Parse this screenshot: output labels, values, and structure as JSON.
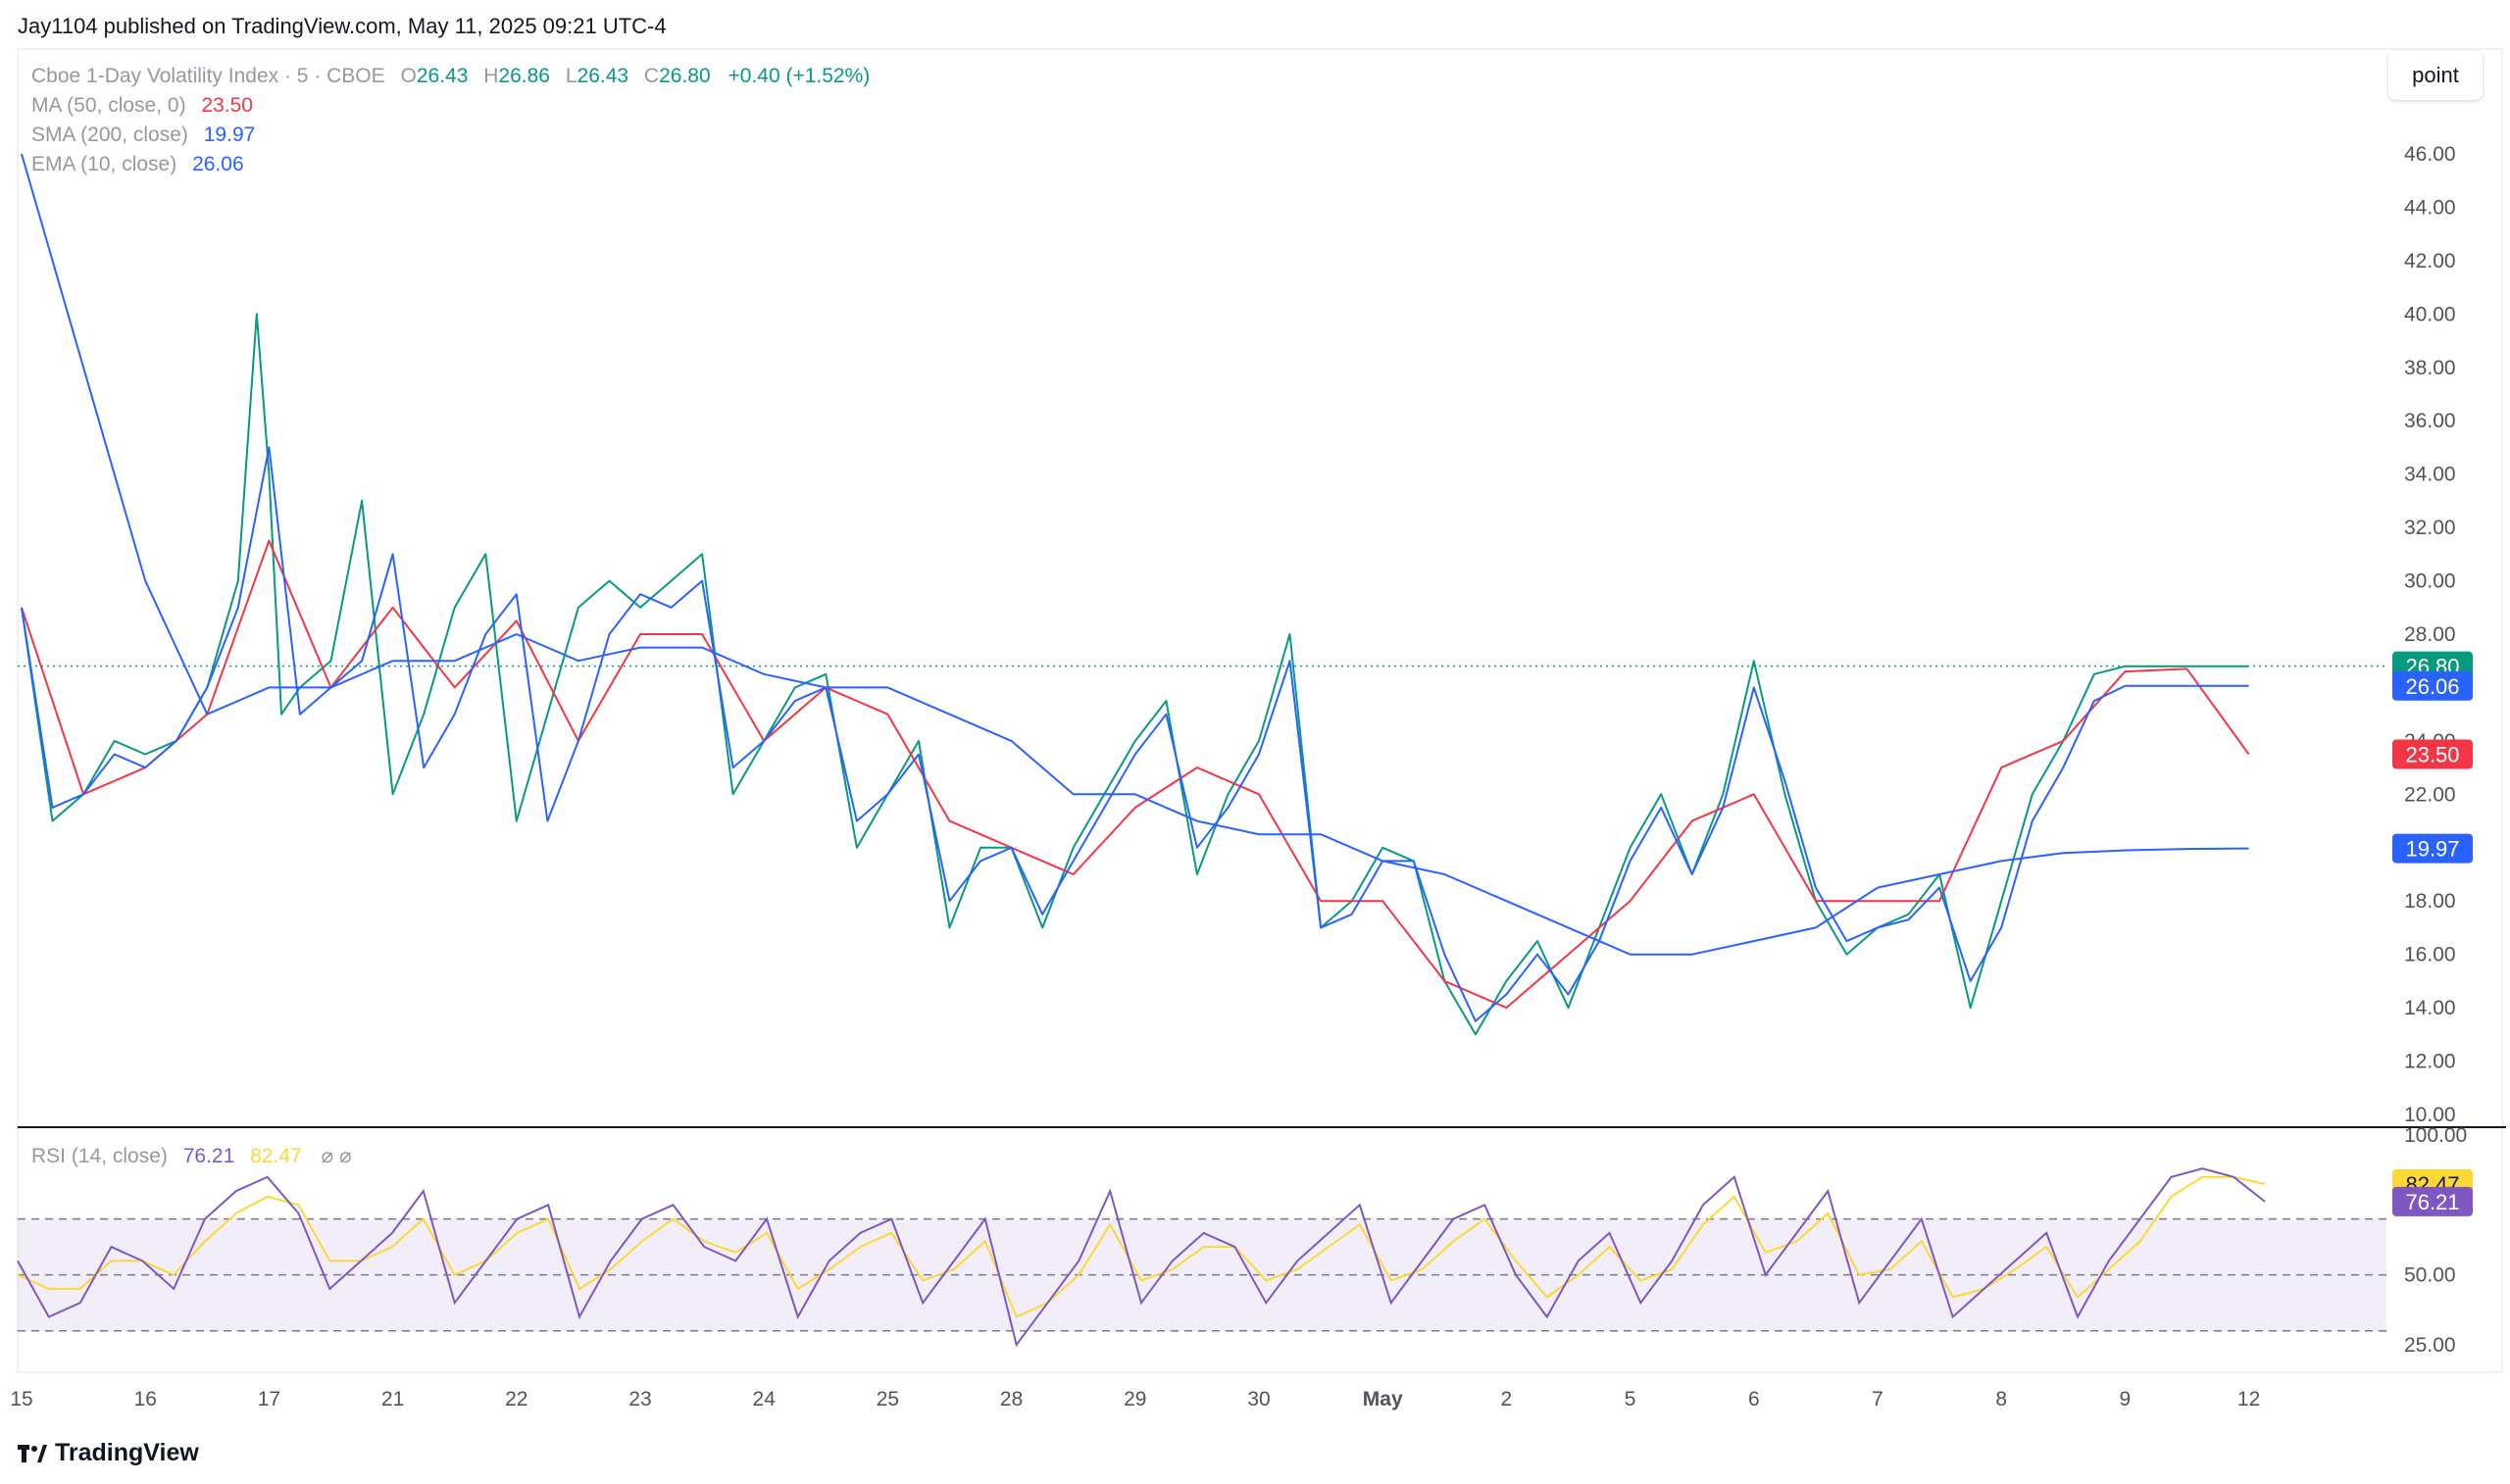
{
  "publisher_line": "Jay1104 published on TradingView.com, May 11, 2025 09:21 UTC-4",
  "brand": "TradingView",
  "point_button": "point",
  "legend": {
    "symbol": "Cboe 1-Day Volatility Index · 5 · CBOE",
    "o_label": "O",
    "o_value": "26.43",
    "h_label": "H",
    "h_value": "26.86",
    "l_label": "L",
    "l_value": "26.43",
    "c_label": "C",
    "c_value": "26.80",
    "change": "+0.40 (+1.52%)",
    "ma_label": "MA (50, close, 0)",
    "ma_value": "23.50",
    "sma_label": "SMA (200, close)",
    "sma_value": "19.97",
    "ema_label": "EMA (10, close)",
    "ema_value": "26.06",
    "rsi_label": "RSI (14, close)",
    "rsi_value": "76.21",
    "rsi_ma_value": "82.47"
  },
  "colors": {
    "up": "#089981",
    "down": "#f23645",
    "ma": "#f23645",
    "sma": "#2962ff",
    "ema": "#2962ff",
    "rsi": "#7e57c2",
    "rsi_ma": "#fdd835",
    "price_line": "#089981"
  },
  "chart_data": {
    "type": "line",
    "title": "Cboe 1-Day Volatility Index · 5 · CBOE",
    "x_tick_labels": [
      "15",
      "16",
      "17",
      "21",
      "22",
      "23",
      "24",
      "25",
      "28",
      "29",
      "30",
      "May",
      "2",
      "5",
      "6",
      "7",
      "8",
      "9",
      "12"
    ],
    "price_axis": {
      "ylim": [
        10,
        48
      ],
      "ticks": [
        "10.00",
        "12.00",
        "14.00",
        "16.00",
        "18.00",
        "20.00",
        "22.00",
        "24.00",
        "26.00",
        "28.00",
        "30.00",
        "32.00",
        "34.00",
        "36.00",
        "38.00",
        "40.00",
        "42.00",
        "44.00",
        "46.00"
      ]
    },
    "price_tags": [
      {
        "value": 26.8,
        "label": "26.80",
        "color": "#089981"
      },
      {
        "value": 26.06,
        "label": "26.06",
        "color": "#2962ff"
      },
      {
        "value": 23.5,
        "label": "23.50",
        "color": "#f23645"
      },
      {
        "value": 19.97,
        "label": "19.97",
        "color": "#2962ff"
      }
    ],
    "series": [
      {
        "name": "Cboe 1-Day Volatility Index",
        "x": [
          0,
          0.25,
          0.5,
          0.75,
          1,
          1.25,
          1.5,
          1.75,
          1.9,
          2,
          2.1,
          2.25,
          2.5,
          2.75,
          3,
          3.25,
          3.5,
          3.75,
          4,
          4.25,
          4.5,
          4.75,
          5,
          5.25,
          5.5,
          5.75,
          6,
          6.25,
          6.5,
          6.75,
          7,
          7.25,
          7.5,
          7.75,
          8,
          8.25,
          8.5,
          8.75,
          9,
          9.25,
          9.5,
          9.75,
          10,
          10.25,
          10.5,
          10.75,
          11,
          11.25,
          11.5,
          11.75,
          12,
          12.25,
          12.5,
          12.75,
          13,
          13.25,
          13.5,
          13.75,
          14,
          14.25,
          14.5,
          14.75,
          15,
          15.25,
          15.5,
          15.75,
          16,
          16.25,
          16.5,
          16.75,
          17,
          17.25,
          17.5,
          17.75,
          18
        ],
        "values": [
          29,
          21,
          22,
          24,
          23.5,
          24,
          26,
          30,
          40,
          34,
          25,
          26,
          27,
          33,
          22,
          25,
          29,
          31,
          21,
          25,
          29,
          30,
          29,
          30,
          31,
          22,
          24,
          26,
          26.5,
          20,
          22,
          24,
          17,
          20,
          20,
          17,
          20,
          22,
          24,
          25.5,
          19,
          22,
          24,
          28,
          17,
          18,
          20,
          19.5,
          15,
          13,
          15,
          16.5,
          14,
          17,
          20,
          22,
          19,
          22,
          27,
          22,
          18,
          16,
          17,
          17.5,
          19,
          14,
          18,
          22,
          24,
          26.5,
          26.8,
          26.8,
          26.8,
          26.8,
          26.8
        ]
      },
      {
        "name": "MA (50, close, 0)",
        "x": [
          0,
          0.5,
          1,
          1.5,
          2,
          2.5,
          3,
          3.5,
          4,
          4.5,
          5,
          5.5,
          6,
          6.5,
          7,
          7.5,
          8,
          8.5,
          9,
          9.5,
          10,
          10.5,
          11,
          11.5,
          12,
          12.5,
          13,
          13.5,
          14,
          14.5,
          15,
          15.5,
          16,
          16.5,
          17,
          17.5,
          18
        ],
        "values": [
          29,
          22,
          23,
          25,
          31.5,
          26,
          29,
          26,
          28.5,
          24,
          28,
          28,
          24,
          26,
          25,
          21,
          20,
          19,
          21.5,
          23,
          22,
          18,
          18,
          15,
          14,
          16,
          18,
          21,
          22,
          18,
          18,
          18,
          23,
          24,
          26.6,
          26.7,
          23.5
        ]
      },
      {
        "name": "SMA (200, close)",
        "x": [
          0,
          0.5,
          1,
          1.5,
          2,
          2.5,
          3,
          3.5,
          4,
          4.5,
          5,
          5.5,
          6,
          6.5,
          7,
          7.5,
          8,
          8.5,
          9,
          9.5,
          10,
          10.5,
          11,
          11.5,
          12,
          12.5,
          13,
          13.5,
          14,
          14.5,
          15,
          15.5,
          16,
          16.5,
          17,
          17.5,
          18
        ],
        "values": [
          46,
          38,
          30,
          25,
          26,
          26,
          27,
          27,
          28,
          27,
          27.5,
          27.5,
          26.5,
          26,
          26,
          25,
          24,
          22,
          22,
          21,
          20.5,
          20.5,
          19.5,
          19,
          18,
          17,
          16,
          16,
          16.5,
          17,
          18.5,
          19,
          19.5,
          19.8,
          19.9,
          19.95,
          19.97
        ]
      },
      {
        "name": "EMA (10, close)",
        "x": [
          0,
          0.25,
          0.5,
          0.75,
          1,
          1.25,
          1.5,
          1.75,
          2,
          2.25,
          2.5,
          2.75,
          3,
          3.25,
          3.5,
          3.75,
          4,
          4.25,
          4.5,
          4.75,
          5,
          5.25,
          5.5,
          5.75,
          6,
          6.25,
          6.5,
          6.75,
          7,
          7.25,
          7.5,
          7.75,
          8,
          8.25,
          8.5,
          8.75,
          9,
          9.25,
          9.5,
          9.75,
          10,
          10.25,
          10.5,
          10.75,
          11,
          11.25,
          11.5,
          11.75,
          12,
          12.25,
          12.5,
          12.75,
          13,
          13.25,
          13.5,
          13.75,
          14,
          14.25,
          14.5,
          14.75,
          15,
          15.25,
          15.5,
          15.75,
          16,
          16.25,
          16.5,
          16.75,
          17,
          17.25,
          17.5,
          17.75,
          18
        ],
        "values": [
          29,
          21.5,
          22,
          23.5,
          23,
          24,
          26,
          29,
          35,
          25,
          26,
          27,
          31,
          23,
          25,
          28,
          29.5,
          21,
          24,
          28,
          29.5,
          29,
          30,
          23,
          24,
          25.5,
          26,
          21,
          22,
          23.5,
          18,
          19.5,
          20,
          17.5,
          19.5,
          21.5,
          23.5,
          25,
          20,
          21.5,
          23.5,
          27,
          17,
          17.5,
          19.5,
          19.5,
          16,
          13.5,
          14.5,
          16,
          14.5,
          16.5,
          19.5,
          21.5,
          19,
          21.5,
          26,
          22.5,
          18.5,
          16.5,
          17,
          17.3,
          18.5,
          15,
          17,
          21,
          23,
          25.5,
          26.06,
          26.06,
          26.06,
          26.06,
          26.06
        ]
      }
    ],
    "rsi": {
      "label": "RSI (14, close)",
      "ylim": [
        10,
        100
      ],
      "ticks": [
        "25.00",
        "50.00",
        "75.00",
        "100.00"
      ],
      "bands": [
        30,
        50,
        70
      ],
      "tags": [
        {
          "value": 82.47,
          "label": "82.47",
          "color": "#fdd835",
          "text_color": "#131722"
        },
        {
          "value": 76.21,
          "label": "76.21",
          "color": "#7e57c2",
          "text_color": "#ffffff"
        }
      ],
      "rsi_values": [
        55,
        35,
        40,
        60,
        55,
        45,
        70,
        80,
        85,
        72,
        45,
        55,
        65,
        80,
        40,
        55,
        70,
        75,
        35,
        55,
        70,
        75,
        60,
        55,
        70,
        35,
        55,
        65,
        70,
        40,
        55,
        70,
        25,
        40,
        55,
        80,
        40,
        55,
        65,
        60,
        40,
        55,
        65,
        75,
        40,
        55,
        70,
        75,
        50,
        35,
        55,
        65,
        40,
        55,
        75,
        85,
        50,
        65,
        80,
        40,
        55,
        70,
        35,
        45,
        55,
        65,
        35,
        55,
        70,
        85,
        88,
        85,
        76.21
      ],
      "ma_values": [
        50,
        45,
        45,
        55,
        55,
        50,
        62,
        72,
        78,
        75,
        55,
        55,
        60,
        70,
        50,
        55,
        65,
        70,
        45,
        52,
        62,
        70,
        62,
        58,
        65,
        45,
        52,
        60,
        65,
        48,
        52,
        62,
        35,
        40,
        50,
        68,
        48,
        52,
        60,
        60,
        48,
        52,
        60,
        68,
        48,
        52,
        62,
        70,
        55,
        42,
        50,
        60,
        48,
        52,
        68,
        78,
        58,
        62,
        72,
        50,
        52,
        62,
        42,
        45,
        52,
        60,
        42,
        52,
        62,
        78,
        85,
        85,
        82.47
      ]
    }
  }
}
